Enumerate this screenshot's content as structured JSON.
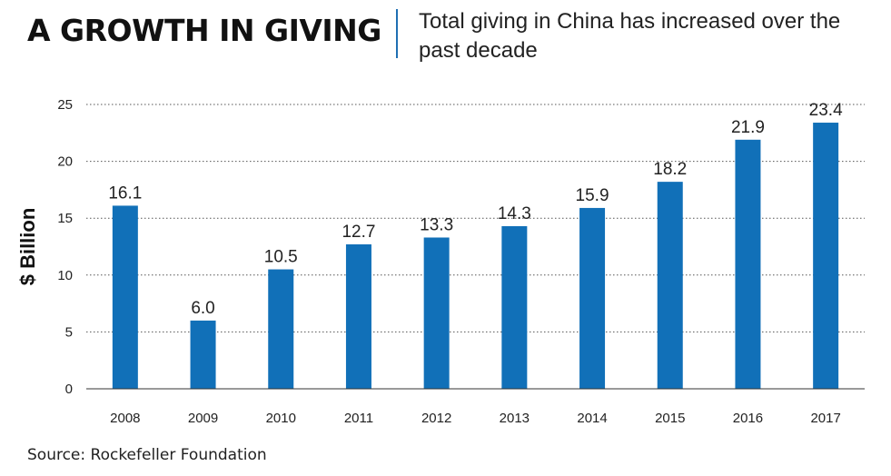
{
  "header": {
    "title": "A GROWTH IN GIVING",
    "subtitle": "Total giving in China has increased over the past decade"
  },
  "footer": {
    "source": "Source: Rockefeller Foundation"
  },
  "colors": {
    "bar": "#1170b8",
    "accent": "#1f6fb3"
  },
  "chart_data": {
    "type": "bar",
    "title": "A GROWTH IN GIVING",
    "subtitle": "Total giving in China has increased over the past decade",
    "xlabel": "",
    "ylabel": "$ Billion",
    "categories": [
      "2008",
      "2009",
      "2010",
      "2011",
      "2012",
      "2013",
      "2014",
      "2015",
      "2016",
      "2017"
    ],
    "values": [
      16.1,
      6.0,
      10.5,
      12.7,
      13.3,
      14.3,
      15.9,
      18.2,
      21.9,
      23.4
    ],
    "value_labels": [
      "16.1",
      "6.0",
      "10.5",
      "12.7",
      "13.3",
      "14.3",
      "15.9",
      "18.2",
      "21.9",
      "23.4"
    ],
    "ylim": [
      0,
      25
    ],
    "yticks": [
      "0",
      "5",
      "10",
      "15",
      "20",
      "25"
    ],
    "grid": "horizontal-dotted",
    "legend": "none"
  }
}
